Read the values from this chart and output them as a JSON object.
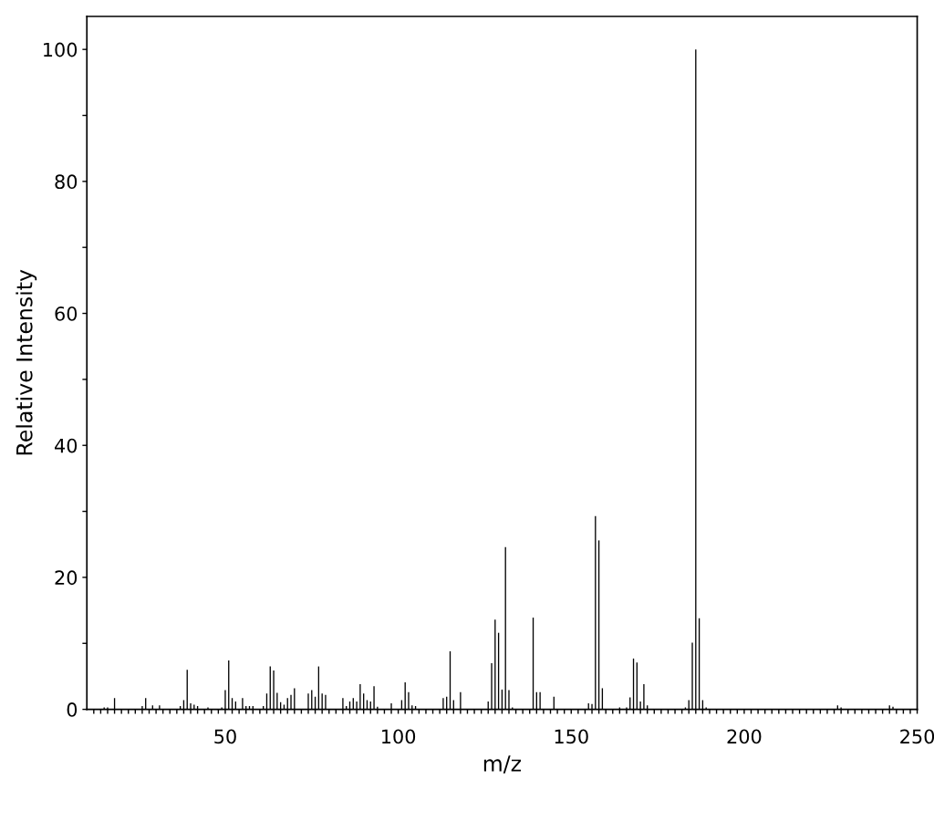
{
  "chart_data": {
    "type": "bar",
    "xlabel": "m/z",
    "ylabel": "Relative Intensity",
    "x": [
      15,
      16,
      18,
      26,
      27,
      29,
      31,
      37,
      38,
      39,
      40,
      41,
      42,
      45,
      49,
      50,
      51,
      52,
      53,
      55,
      56,
      57,
      58,
      61,
      62,
      63,
      64,
      65,
      66,
      67,
      68,
      69,
      70,
      74,
      75,
      76,
      77,
      78,
      79,
      84,
      85,
      86,
      87,
      88,
      89,
      90,
      91,
      92,
      93,
      94,
      98,
      101,
      102,
      103,
      104,
      105,
      113,
      114,
      115,
      116,
      118,
      126,
      127,
      128,
      129,
      130,
      131,
      132,
      133,
      139,
      140,
      141,
      145,
      155,
      156,
      157,
      158,
      159,
      164,
      166,
      167,
      168,
      169,
      170,
      171,
      172,
      183,
      184,
      185,
      186,
      187,
      188,
      189,
      227,
      228,
      242,
      243
    ],
    "values": [
      0.3,
      0.3,
      1.7,
      0.5,
      1.7,
      0.6,
      0.6,
      0.5,
      1.4,
      6.0,
      0.9,
      0.7,
      0.5,
      0.3,
      0.3,
      2.9,
      7.4,
      1.7,
      1.2,
      1.7,
      0.5,
      0.5,
      0.5,
      0.5,
      2.4,
      6.5,
      5.9,
      2.5,
      1.1,
      0.7,
      1.7,
      2.2,
      3.2,
      2.4,
      2.9,
      1.9,
      6.5,
      2.4,
      2.2,
      1.7,
      0.5,
      1.2,
      1.7,
      1.2,
      3.8,
      2.4,
      1.4,
      1.2,
      3.5,
      0.4,
      0.9,
      1.4,
      4.1,
      2.6,
      0.6,
      0.5,
      1.7,
      1.9,
      8.8,
      1.4,
      2.6,
      1.2,
      7.0,
      13.6,
      11.6,
      3.0,
      24.6,
      2.9,
      0.3,
      13.9,
      2.6,
      2.6,
      1.9,
      0.9,
      0.8,
      29.3,
      25.6,
      3.2,
      0.3,
      0.3,
      1.8,
      7.7,
      7.1,
      1.2,
      3.8,
      0.6,
      0.3,
      1.4,
      10.1,
      100,
      13.8,
      1.4,
      0.3,
      0.6,
      0.3,
      0.6,
      0.4
    ],
    "color": "#000000",
    "xlim": [
      10,
      250
    ],
    "ylim": [
      0,
      105
    ],
    "xticks": [
      {
        "value": 12,
        "label": null
      },
      {
        "value": 14,
        "label": null
      },
      {
        "value": 16,
        "label": null
      },
      {
        "value": 18,
        "label": null
      },
      {
        "value": 20,
        "label": null
      },
      {
        "value": 22,
        "label": null
      },
      {
        "value": 24,
        "label": null
      },
      {
        "value": 26,
        "label": null
      },
      {
        "value": 28,
        "label": null
      },
      {
        "value": 30,
        "label": null
      },
      {
        "value": 32,
        "label": null
      },
      {
        "value": 34,
        "label": null
      },
      {
        "value": 36,
        "label": null
      },
      {
        "value": 38,
        "label": null
      },
      {
        "value": 40,
        "label": null
      },
      {
        "value": 42,
        "label": null
      },
      {
        "value": 44,
        "label": null
      },
      {
        "value": 46,
        "label": null
      },
      {
        "value": 48,
        "label": null
      },
      50,
      {
        "value": 52,
        "label": null
      },
      {
        "value": 54,
        "label": null
      },
      {
        "value": 56,
        "label": null
      },
      {
        "value": 58,
        "label": null
      },
      {
        "value": 60,
        "label": null
      },
      {
        "value": 62,
        "label": null
      },
      {
        "value": 64,
        "label": null
      },
      {
        "value": 66,
        "label": null
      },
      {
        "value": 68,
        "label": null
      },
      {
        "value": 70,
        "label": null
      },
      {
        "value": 72,
        "label": null
      },
      {
        "value": 74,
        "label": null
      },
      {
        "value": 76,
        "label": null
      },
      {
        "value": 78,
        "label": null
      },
      {
        "value": 80,
        "label": null
      },
      {
        "value": 82,
        "label": null
      },
      {
        "value": 84,
        "label": null
      },
      {
        "value": 86,
        "label": null
      },
      {
        "value": 88,
        "label": null
      },
      {
        "value": 90,
        "label": null
      },
      {
        "value": 92,
        "label": null
      },
      {
        "value": 94,
        "label": null
      },
      {
        "value": 96,
        "label": null
      },
      {
        "value": 98,
        "label": null
      },
      100,
      {
        "value": 102,
        "label": null
      },
      {
        "value": 104,
        "label": null
      },
      {
        "value": 106,
        "label": null
      },
      {
        "value": 108,
        "label": null
      },
      {
        "value": 110,
        "label": null
      },
      {
        "value": 112,
        "label": null
      },
      {
        "value": 114,
        "label": null
      },
      {
        "value": 116,
        "label": null
      },
      {
        "value": 118,
        "label": null
      },
      {
        "value": 120,
        "label": null
      },
      {
        "value": 122,
        "label": null
      },
      {
        "value": 124,
        "label": null
      },
      {
        "value": 126,
        "label": null
      },
      {
        "value": 128,
        "label": null
      },
      {
        "value": 130,
        "label": null
      },
      {
        "value": 132,
        "label": null
      },
      {
        "value": 134,
        "label": null
      },
      {
        "value": 136,
        "label": null
      },
      {
        "value": 138,
        "label": null
      },
      {
        "value": 140,
        "label": null
      },
      {
        "value": 142,
        "label": null
      },
      {
        "value": 144,
        "label": null
      },
      {
        "value": 146,
        "label": null
      },
      {
        "value": 148,
        "label": null
      },
      150,
      {
        "value": 152,
        "label": null
      },
      {
        "value": 154,
        "label": null
      },
      {
        "value": 156,
        "label": null
      },
      {
        "value": 158,
        "label": null
      },
      {
        "value": 160,
        "label": null
      },
      {
        "value": 162,
        "label": null
      },
      {
        "value": 164,
        "label": null
      },
      {
        "value": 166,
        "label": null
      },
      {
        "value": 168,
        "label": null
      },
      {
        "value": 170,
        "label": null
      },
      {
        "value": 172,
        "label": null
      },
      {
        "value": 174,
        "label": null
      },
      {
        "value": 176,
        "label": null
      },
      {
        "value": 178,
        "label": null
      },
      {
        "value": 180,
        "label": null
      },
      {
        "value": 182,
        "label": null
      },
      {
        "value": 184,
        "label": null
      },
      {
        "value": 186,
        "label": null
      },
      {
        "value": 188,
        "label": null
      },
      {
        "value": 190,
        "label": null
      },
      {
        "value": 192,
        "label": null
      },
      {
        "value": 194,
        "label": null
      },
      {
        "value": 196,
        "label": null
      },
      {
        "value": 198,
        "label": null
      },
      200,
      {
        "value": 202,
        "label": null
      },
      {
        "value": 204,
        "label": null
      },
      {
        "value": 206,
        "label": null
      },
      {
        "value": 208,
        "label": null
      },
      {
        "value": 210,
        "label": null
      },
      {
        "value": 212,
        "label": null
      },
      {
        "value": 214,
        "label": null
      },
      {
        "value": 216,
        "label": null
      },
      {
        "value": 218,
        "label": null
      },
      {
        "value": 220,
        "label": null
      },
      {
        "value": 222,
        "label": null
      },
      {
        "value": 224,
        "label": null
      },
      {
        "value": 226,
        "label": null
      },
      {
        "value": 228,
        "label": null
      },
      {
        "value": 230,
        "label": null
      },
      {
        "value": 232,
        "label": null
      },
      {
        "value": 234,
        "label": null
      },
      {
        "value": 236,
        "label": null
      },
      {
        "value": 238,
        "label": null
      },
      {
        "value": 240,
        "label": null
      },
      {
        "value": 242,
        "label": null
      },
      {
        "value": 244,
        "label": null
      },
      {
        "value": 246,
        "label": null
      },
      {
        "value": 248,
        "label": null
      },
      250
    ],
    "yticks": [
      0,
      {
        "value": 10,
        "label": null
      },
      20,
      {
        "value": 30,
        "label": null
      },
      40,
      {
        "value": 50,
        "label": null
      },
      60,
      {
        "value": 70,
        "label": null
      },
      80,
      {
        "value": 90,
        "label": null
      },
      100
    ],
    "grid": false
  }
}
